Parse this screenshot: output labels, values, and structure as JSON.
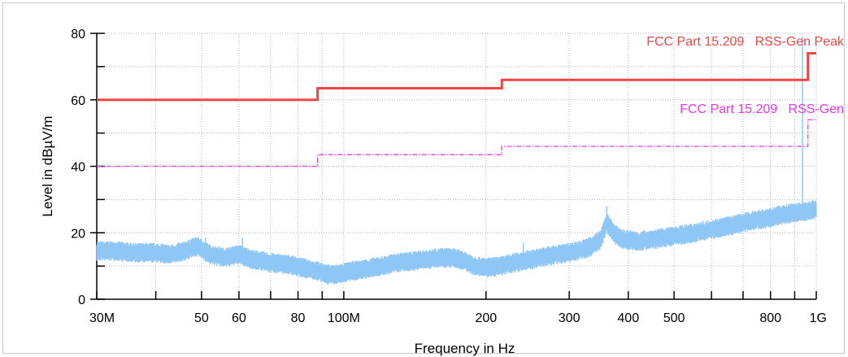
{
  "chart_data": {
    "type": "line",
    "xscale": "log",
    "xlim": [
      30000000,
      1000000000
    ],
    "ylim": [
      0,
      80
    ],
    "grid": true,
    "xlabel": "Frequency in Hz",
    "ylabel": "Level in dBµV/m",
    "x_ticks": [
      {
        "value": 30000000,
        "label": "30M"
      },
      {
        "value": 50000000,
        "label": "50"
      },
      {
        "value": 60000000,
        "label": "60"
      },
      {
        "value": 80000000,
        "label": "80"
      },
      {
        "value": 100000000,
        "label": "100M"
      },
      {
        "value": 200000000,
        "label": "200"
      },
      {
        "value": 300000000,
        "label": "300"
      },
      {
        "value": 400000000,
        "label": "400"
      },
      {
        "value": 500000000,
        "label": "500"
      },
      {
        "value": 800000000,
        "label": "800"
      },
      {
        "value": 1000000000,
        "label": "1G"
      }
    ],
    "x_unlabeled_ticks": [
      40000000,
      70000000,
      90000000,
      600000000,
      700000000,
      900000000
    ],
    "y_ticks": [
      0,
      20,
      40,
      60,
      80
    ],
    "y_minor_ticks": [
      10,
      30,
      50,
      70
    ],
    "colors": {
      "peak_limit": "#f04545",
      "avg_limit": "#ee33ee",
      "measurement": "#8ec7f5"
    },
    "series": [
      {
        "name": "FCC Part 15.209   RSS-Gen Peak",
        "style": "solid",
        "points": [
          [
            30000000,
            60
          ],
          [
            88000000,
            60
          ],
          [
            88000000,
            63.5
          ],
          [
            216000000,
            63.5
          ],
          [
            216000000,
            66
          ],
          [
            960000000,
            66
          ],
          [
            960000000,
            74
          ],
          [
            1000000000,
            74
          ]
        ]
      },
      {
        "name": "FCC Part 15.209   RSS-Gen",
        "style": "dashdot",
        "points": [
          [
            30000000,
            40
          ],
          [
            88000000,
            40
          ],
          [
            88000000,
            43.5
          ],
          [
            216000000,
            43.5
          ],
          [
            216000000,
            46
          ],
          [
            960000000,
            46
          ],
          [
            960000000,
            54
          ],
          [
            1000000000,
            54
          ]
        ]
      },
      {
        "name": "",
        "style": "noisy",
        "points": [
          [
            30000000,
            14.5
          ],
          [
            33000000,
            14.5
          ],
          [
            36000000,
            14
          ],
          [
            40000000,
            14
          ],
          [
            43000000,
            13.5
          ],
          [
            46000000,
            14.5
          ],
          [
            49000000,
            16
          ],
          [
            52000000,
            13.5
          ],
          [
            56000000,
            12.5
          ],
          [
            60000000,
            13.5
          ],
          [
            64000000,
            12
          ],
          [
            70000000,
            11
          ],
          [
            76000000,
            10.5
          ],
          [
            82000000,
            9.5
          ],
          [
            88000000,
            8.5
          ],
          [
            92000000,
            7.5
          ],
          [
            96000000,
            7.5
          ],
          [
            100000000,
            8
          ],
          [
            110000000,
            9
          ],
          [
            120000000,
            10
          ],
          [
            130000000,
            11
          ],
          [
            140000000,
            11.5
          ],
          [
            150000000,
            12
          ],
          [
            160000000,
            12.5
          ],
          [
            170000000,
            12.5
          ],
          [
            180000000,
            11.5
          ],
          [
            190000000,
            10
          ],
          [
            200000000,
            9.5
          ],
          [
            215000000,
            10
          ],
          [
            230000000,
            11
          ],
          [
            250000000,
            12
          ],
          [
            270000000,
            13
          ],
          [
            300000000,
            14
          ],
          [
            330000000,
            15.5
          ],
          [
            350000000,
            18
          ],
          [
            360000000,
            23
          ],
          [
            375000000,
            19.5
          ],
          [
            390000000,
            18
          ],
          [
            420000000,
            17.5
          ],
          [
            450000000,
            18
          ],
          [
            500000000,
            19
          ],
          [
            550000000,
            20
          ],
          [
            600000000,
            21
          ],
          [
            650000000,
            22
          ],
          [
            700000000,
            23
          ],
          [
            750000000,
            24
          ],
          [
            800000000,
            24.5
          ],
          [
            850000000,
            25.5
          ],
          [
            900000000,
            26
          ],
          [
            950000000,
            26.5
          ],
          [
            1000000000,
            27
          ]
        ],
        "spikes": [
          [
            51000000,
            18.5
          ],
          [
            61000000,
            18.5
          ],
          [
            240000000,
            17
          ],
          [
            360000000,
            28
          ],
          [
            935000000,
            79
          ]
        ]
      }
    ]
  }
}
